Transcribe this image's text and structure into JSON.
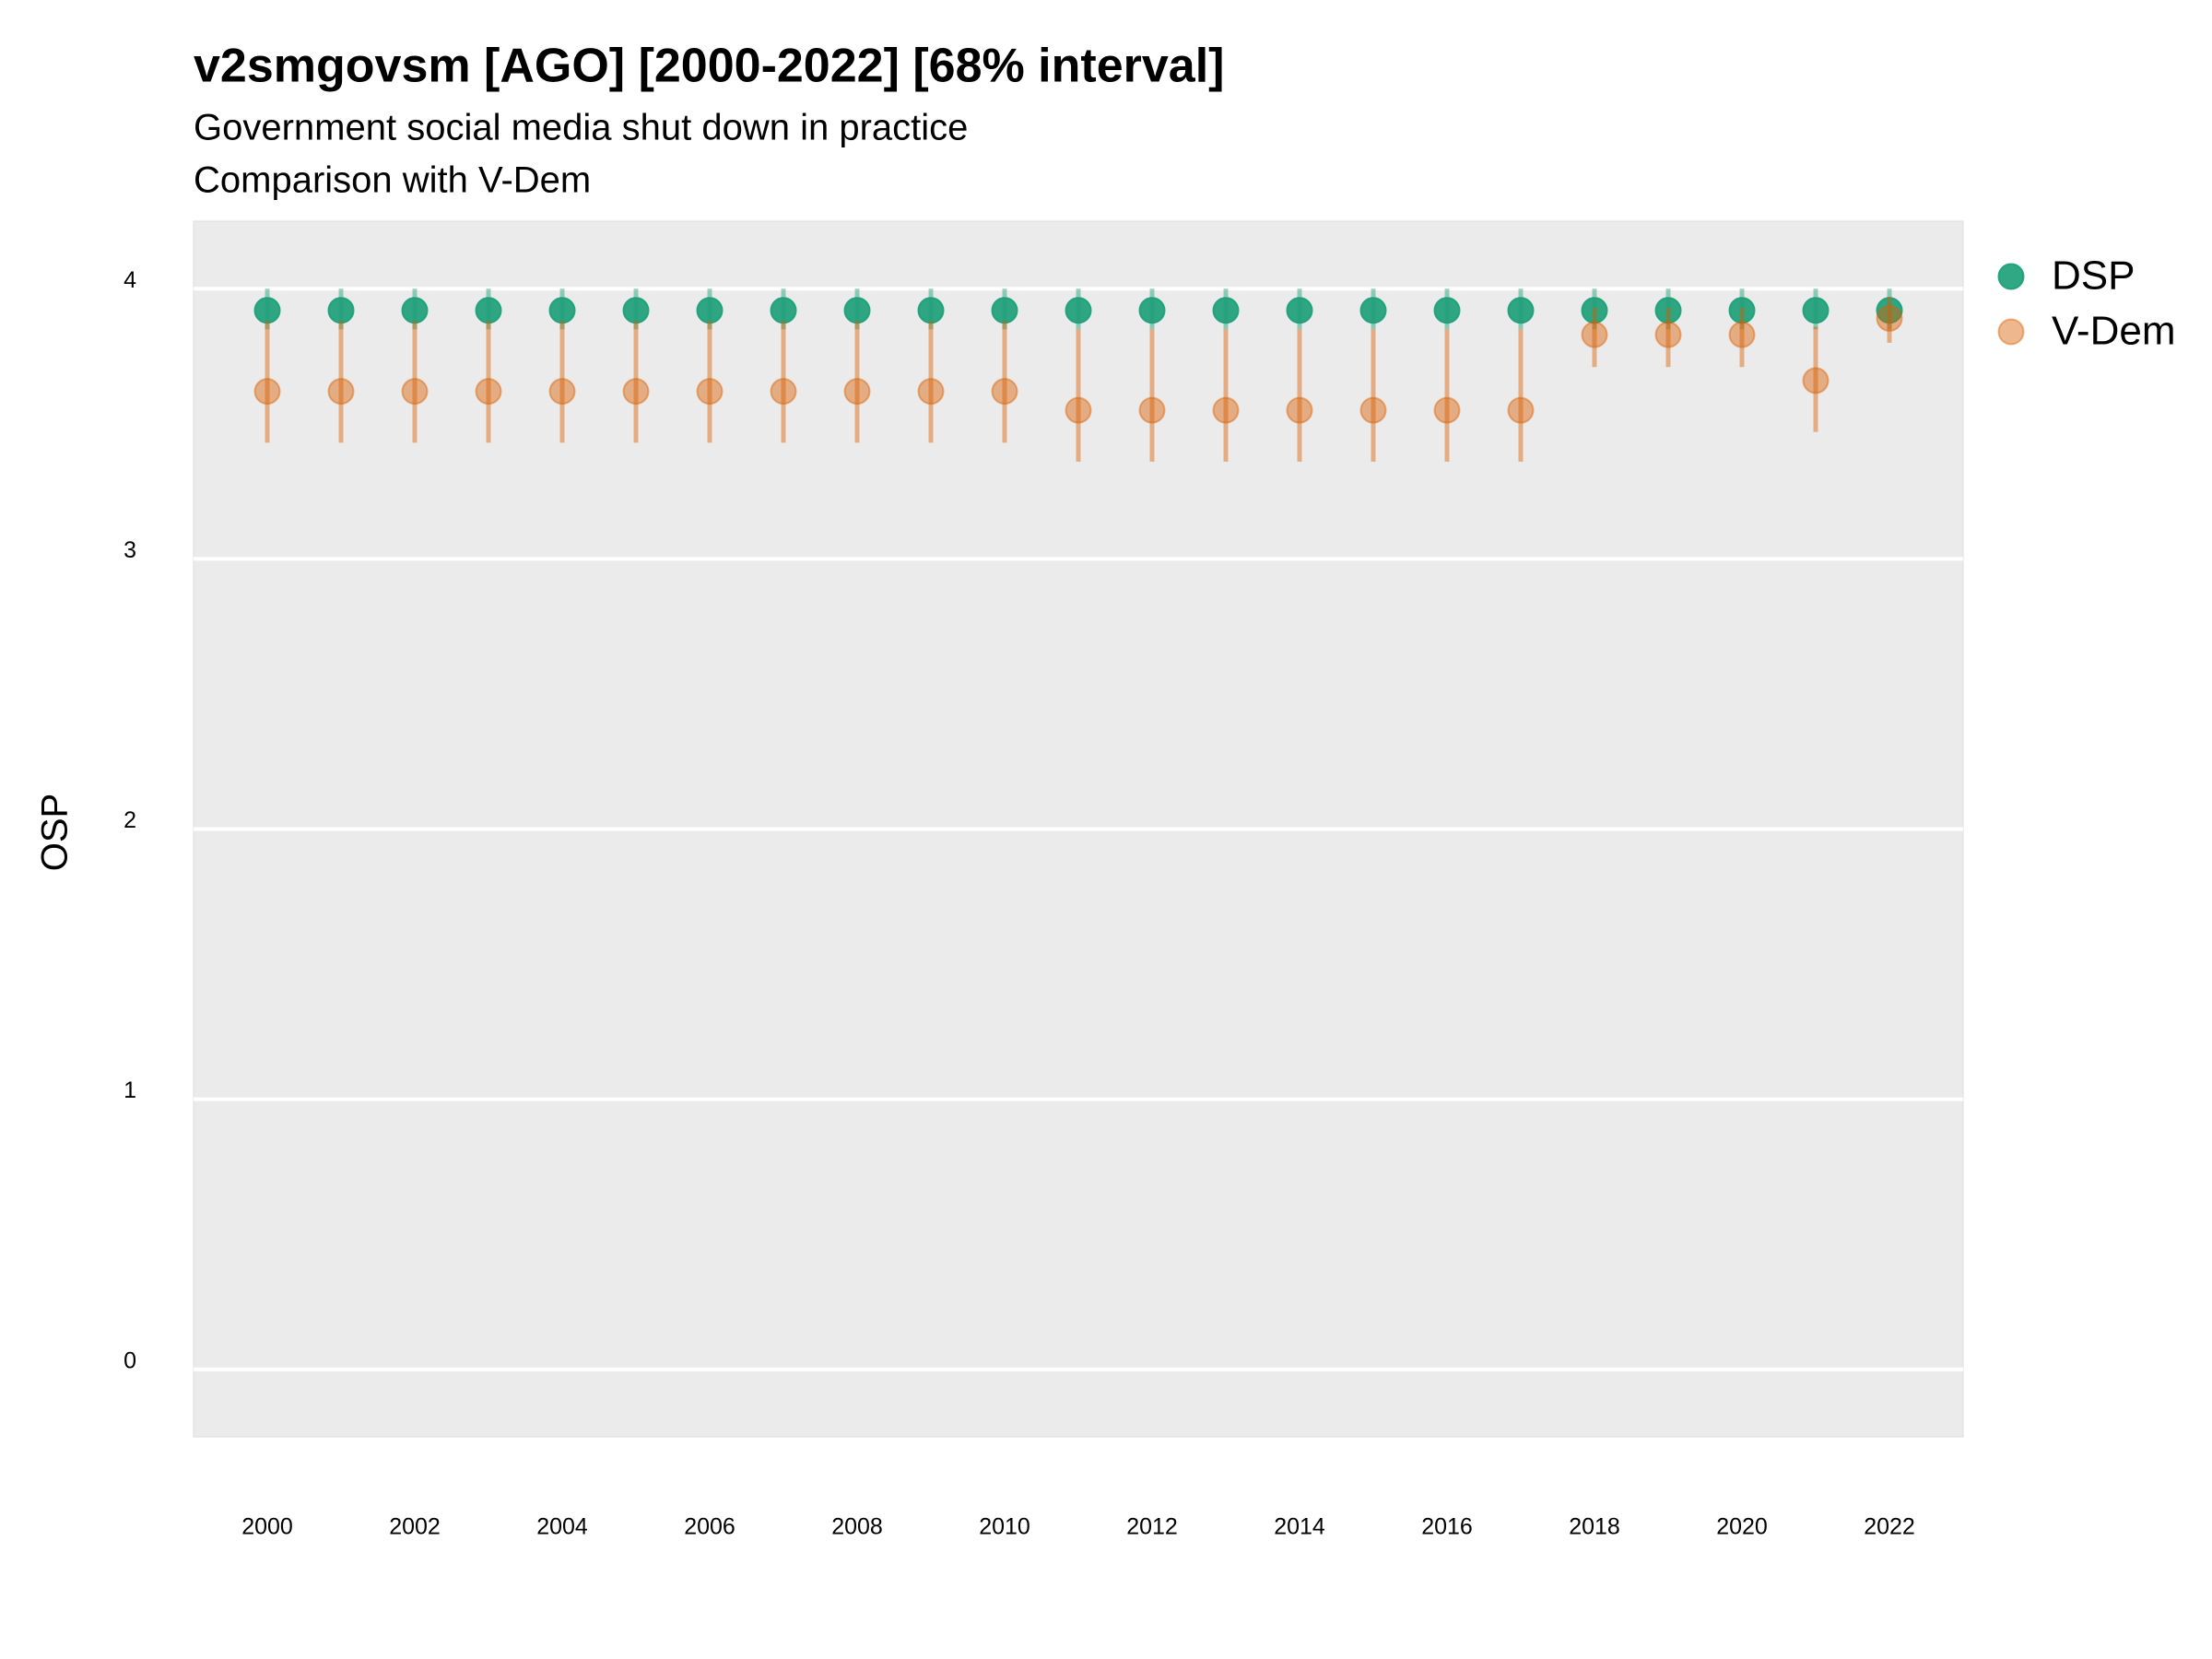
{
  "chart_data": {
    "type": "errorbar_points",
    "title": "v2smgovsm [AGO] [2000-2022] [68% interval]",
    "subtitle": "Government social media shut down in practice",
    "subtitle2": "Comparison with V-Dem",
    "y_label": "OSP",
    "x": [
      2000,
      2001,
      2002,
      2003,
      2004,
      2005,
      2006,
      2007,
      2008,
      2009,
      2010,
      2011,
      2012,
      2013,
      2014,
      2015,
      2016,
      2017,
      2018,
      2019,
      2020,
      2021,
      2022
    ],
    "xlim": [
      1999,
      2023
    ],
    "xticks": [
      2000,
      2002,
      2004,
      2006,
      2008,
      2010,
      2012,
      2014,
      2016,
      2018,
      2020,
      2022
    ],
    "ylim": [
      -0.25,
      4.25
    ],
    "yticks": [
      0,
      1,
      2,
      3,
      4
    ],
    "grid": true,
    "legend": "right",
    "series": [
      {
        "name": "DSP",
        "color": "#1b9e77",
        "values": [
          3.92,
          3.92,
          3.92,
          3.92,
          3.92,
          3.92,
          3.92,
          3.92,
          3.92,
          3.92,
          3.92,
          3.92,
          3.92,
          3.92,
          3.92,
          3.92,
          3.92,
          3.92,
          3.92,
          3.92,
          3.92,
          3.92,
          3.92
        ],
        "lower": [
          3.85,
          3.85,
          3.85,
          3.85,
          3.85,
          3.85,
          3.85,
          3.85,
          3.85,
          3.85,
          3.85,
          3.85,
          3.85,
          3.85,
          3.85,
          3.85,
          3.85,
          3.85,
          3.85,
          3.85,
          3.85,
          3.85,
          3.85
        ],
        "upper": [
          4.0,
          4.0,
          4.0,
          4.0,
          4.0,
          4.0,
          4.0,
          4.0,
          4.0,
          4.0,
          4.0,
          4.0,
          4.0,
          4.0,
          4.0,
          4.0,
          4.0,
          4.0,
          4.0,
          4.0,
          4.0,
          4.0,
          4.0
        ]
      },
      {
        "name": "V-Dem",
        "color": "#d95f02",
        "values": [
          3.62,
          3.62,
          3.62,
          3.62,
          3.62,
          3.62,
          3.62,
          3.62,
          3.62,
          3.62,
          3.62,
          3.55,
          3.55,
          3.55,
          3.55,
          3.55,
          3.55,
          3.55,
          3.83,
          3.83,
          3.83,
          3.66,
          3.89
        ],
        "lower": [
          3.43,
          3.43,
          3.43,
          3.43,
          3.43,
          3.43,
          3.43,
          3.43,
          3.43,
          3.43,
          3.43,
          3.36,
          3.36,
          3.36,
          3.36,
          3.36,
          3.36,
          3.36,
          3.71,
          3.71,
          3.71,
          3.47,
          3.8
        ],
        "upper": [
          3.88,
          3.88,
          3.88,
          3.88,
          3.88,
          3.88,
          3.88,
          3.88,
          3.88,
          3.88,
          3.88,
          3.85,
          3.85,
          3.85,
          3.85,
          3.85,
          3.85,
          3.85,
          3.93,
          3.93,
          3.93,
          3.86,
          3.97
        ]
      }
    ]
  }
}
